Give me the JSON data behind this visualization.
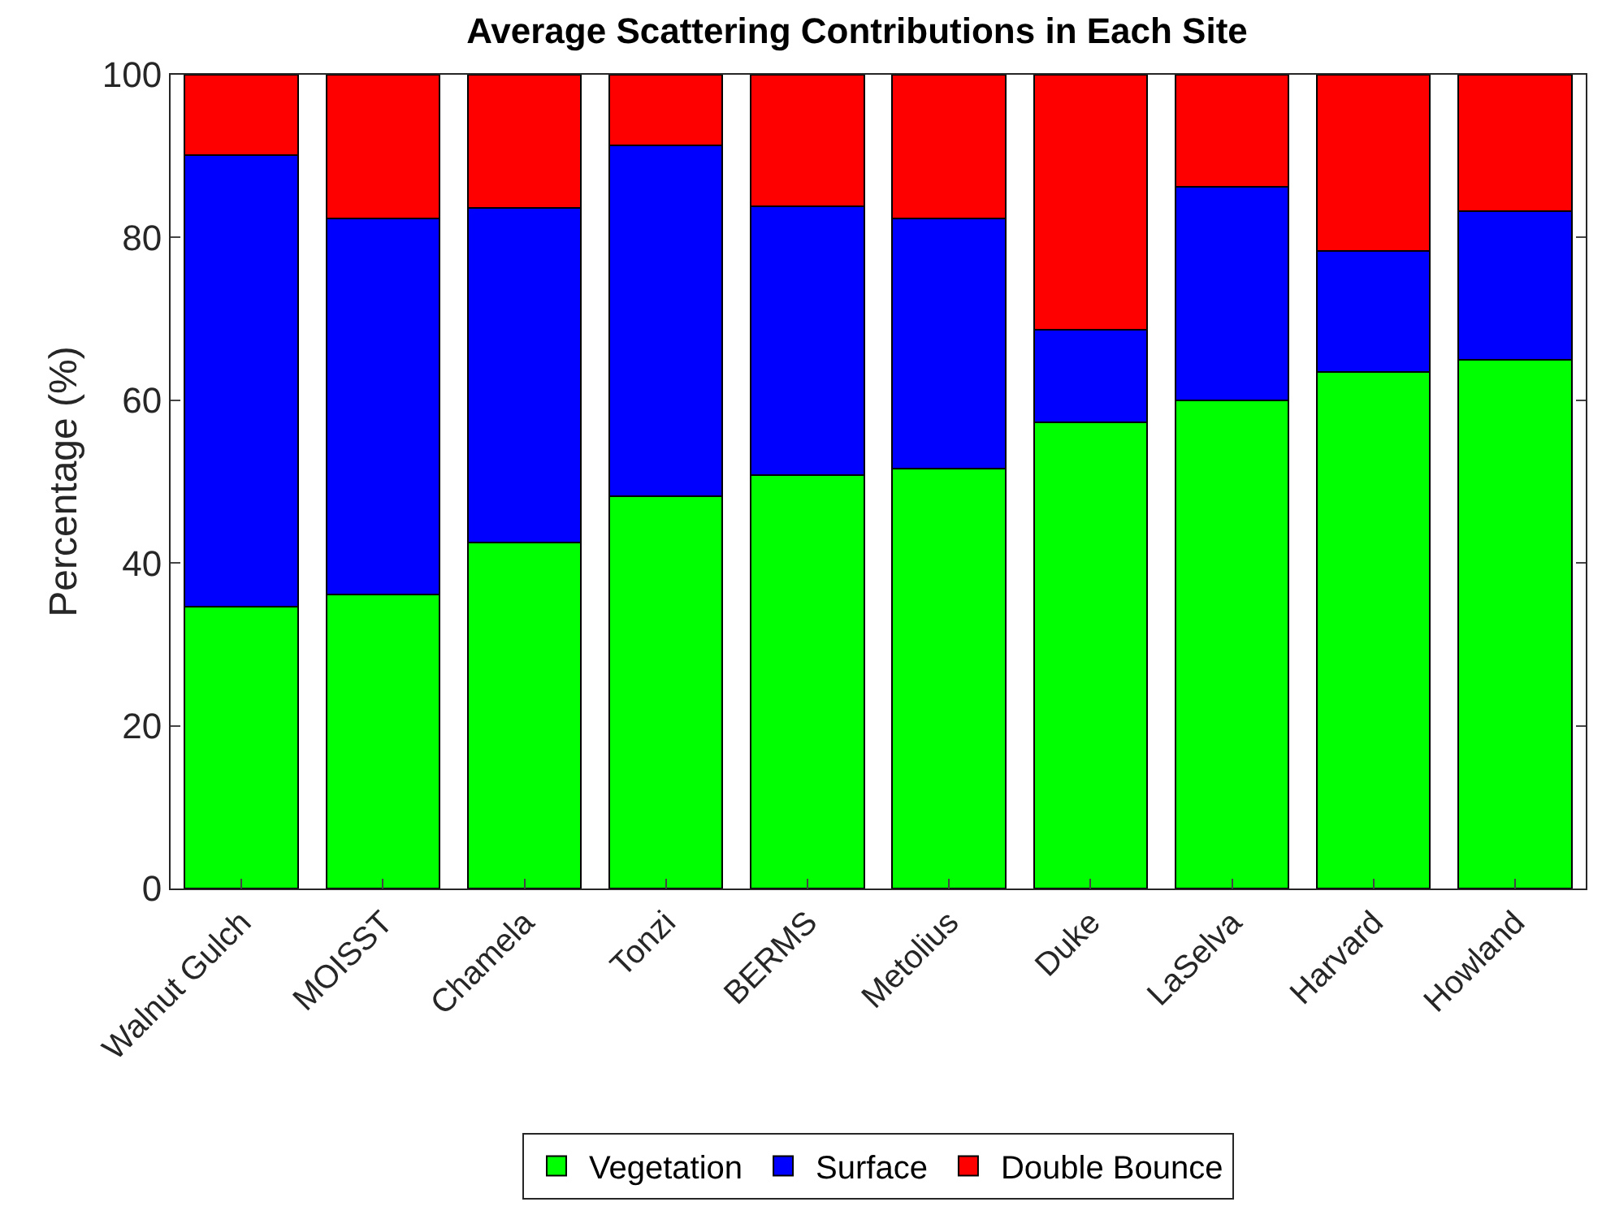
{
  "chart_data": {
    "type": "bar",
    "title": "Average Scattering Contributions in Each Site",
    "ylabel": "Percentage (%)",
    "categories": [
      "Walnut Gulch",
      "MOISST",
      "Chamela",
      "Tonzi",
      "BERMS",
      "Metolius",
      "Duke",
      "LaSelva",
      "Harvard",
      "Howland"
    ],
    "stacked": true,
    "series": [
      {
        "name": "Vegetation",
        "color": "#00ff00",
        "values": [
          34.6,
          36.1,
          42.5,
          48.2,
          50.8,
          51.6,
          57.3,
          60.0,
          63.5,
          65.0
        ]
      },
      {
        "name": "Surface",
        "color": "#0000ff",
        "values": [
          55.5,
          46.2,
          41.1,
          43.1,
          33.0,
          30.7,
          11.4,
          26.2,
          14.8,
          18.2
        ]
      },
      {
        "name": "Double Bounce",
        "color": "#ff0000",
        "values": [
          9.9,
          17.7,
          16.4,
          8.7,
          16.2,
          17.7,
          31.3,
          13.8,
          21.7,
          16.8
        ]
      }
    ],
    "ylim": [
      0,
      100
    ],
    "yticks": [
      0,
      20,
      40,
      60,
      80,
      100
    ],
    "grid": false,
    "legend": "bottom"
  }
}
